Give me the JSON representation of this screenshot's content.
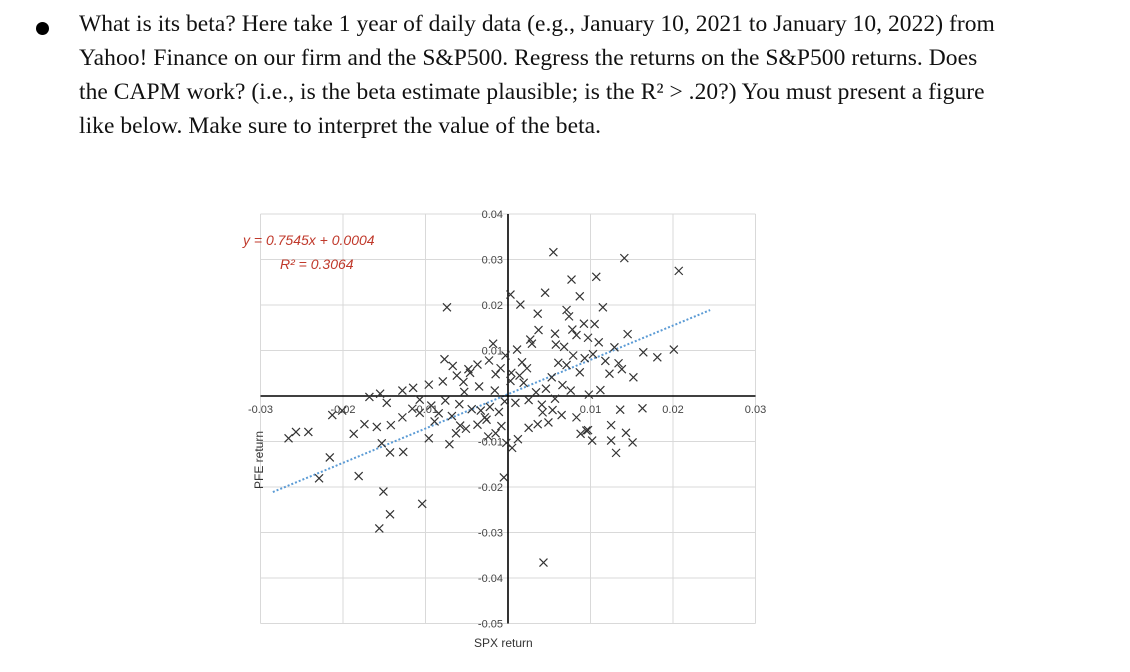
{
  "question": {
    "lines": [
      "What is its beta? Here take 1 year of daily data (e.g., January 10, 2021 to January 10, 2022) from",
      "Yahoo! Finance on our firm and the S&P500. Regress the returns on the S&P500 returns. Does",
      "the CAPM work? (i.e., is the beta estimate plausible; is the R² > .20?) You must present a figure",
      "like below. Make sure to interpret the value of the beta."
    ]
  },
  "chart_data": {
    "type": "scatter",
    "xlabel": "SPX return",
    "ylabel": "PFE return",
    "xlim": [
      -0.03,
      0.03
    ],
    "ylim": [
      -0.05,
      0.04
    ],
    "x_ticks": [
      "-0.03",
      "-0.02",
      "-0.01",
      "0.01",
      "0.02",
      "0.03"
    ],
    "y_ticks": [
      "0.04",
      "0.03",
      "0.02",
      "0.01",
      "-0.01",
      "-0.02",
      "-0.03",
      "-0.04",
      "-0.05"
    ],
    "trendline": {
      "equation": "y = 0.7545x + 0.0004",
      "r_squared": "R² = 0.3064",
      "slope": 0.7545,
      "intercept": 0.0004,
      "color": "#5b9bd5"
    },
    "marker_color": "#333333",
    "eq_color": "#c0392b",
    "points": [
      [
        0.0055,
        0.0316
      ],
      [
        0.0077,
        0.0256
      ],
      [
        0.0045,
        0.0227
      ],
      [
        0.0141,
        0.0303
      ],
      [
        0.0087,
        0.0219
      ],
      [
        0.0107,
        0.0262
      ],
      [
        0.0003,
        0.0223
      ],
      [
        0.0015,
        0.0201
      ],
      [
        0.0036,
        0.0181
      ],
      [
        0.0071,
        0.0189
      ],
      [
        0.0074,
        0.0175
      ],
      [
        0.0092,
        0.0159
      ],
      [
        0.0115,
        0.0195
      ],
      [
        0.0105,
        0.0158
      ],
      [
        0.0037,
        0.0145
      ],
      [
        0.0057,
        0.0137
      ],
      [
        0.0078,
        0.0146
      ],
      [
        0.0083,
        0.0134
      ],
      [
        0.0097,
        0.0128
      ],
      [
        0.011,
        0.0118
      ],
      [
        0.0129,
        0.0107
      ],
      [
        0.0145,
        0.0136
      ],
      [
        0.0164,
        0.0096
      ],
      [
        0.0103,
        0.0092
      ],
      [
        0.0118,
        0.0077
      ],
      [
        0.0134,
        0.0072
      ],
      [
        -0.0074,
        0.0195
      ],
      [
        -0.0018,
        0.0115
      ],
      [
        0.0011,
        0.0102
      ],
      [
        -0.0003,
        0.0089
      ],
      [
        -0.0023,
        0.0078
      ],
      [
        -0.0037,
        0.0069
      ],
      [
        -0.0046,
        0.0051
      ],
      [
        -0.0062,
        0.0045
      ],
      [
        -0.0079,
        0.0032
      ],
      [
        -0.0096,
        0.0025
      ],
      [
        -0.0115,
        0.0018
      ],
      [
        -0.0128,
        0.0012
      ],
      [
        -0.0155,
        0.0005
      ],
      [
        -0.0147,
        -0.0015
      ],
      [
        -0.0168,
        -0.0002
      ],
      [
        -0.0116,
        -0.0028
      ],
      [
        -0.0107,
        -0.0037
      ],
      [
        -0.0128,
        -0.0047
      ],
      [
        -0.0089,
        -0.0056
      ],
      [
        -0.0142,
        -0.0064
      ],
      [
        -0.0153,
        -0.0104
      ],
      [
        -0.0096,
        -0.0093
      ],
      [
        -0.0127,
        -0.0123
      ],
      [
        -0.0143,
        -0.0124
      ],
      [
        -0.0063,
        -0.0082
      ],
      [
        -0.0051,
        -0.0072
      ],
      [
        -0.0037,
        -0.0063
      ],
      [
        -0.0026,
        -0.0052
      ],
      [
        -0.0033,
        -0.0032
      ],
      [
        -0.0044,
        -0.0029
      ],
      [
        -0.0059,
        -0.0018
      ],
      [
        -0.0076,
        -0.001
      ],
      [
        -0.0022,
        -0.0024
      ],
      [
        -0.0011,
        -0.0035
      ],
      [
        -0.0008,
        -0.0066
      ],
      [
        -0.0015,
        -0.0082
      ],
      [
        -0.0002,
        -0.0103
      ],
      [
        0.0005,
        -0.0114
      ],
      [
        0.0012,
        -0.0095
      ],
      [
        0.0025,
        -0.007
      ],
      [
        0.0036,
        -0.0062
      ],
      [
        0.0042,
        -0.0036
      ],
      [
        0.0049,
        -0.0058
      ],
      [
        0.0054,
        -0.0031
      ],
      [
        0.0065,
        -0.0042
      ],
      [
        0.0083,
        -0.0047
      ],
      [
        0.0097,
        -0.0075
      ],
      [
        0.0102,
        -0.0098
      ],
      [
        0.0136,
        -0.003
      ],
      [
        0.0163,
        -0.0027
      ],
      [
        0.0053,
        0.0041
      ],
      [
        0.0066,
        0.0024
      ],
      [
        0.0087,
        0.0052
      ],
      [
        0.0071,
        0.0068
      ],
      [
        0.0093,
        0.0083
      ],
      [
        0.0123,
        0.0049
      ],
      [
        0.0138,
        0.0059
      ],
      [
        0.0152,
        0.0041
      ],
      [
        0.0034,
        0.0008
      ],
      [
        0.0046,
        0.0016
      ],
      [
        0.0014,
        0.0045
      ],
      [
        0.0023,
        0.0061
      ],
      [
        0.0017,
        0.0074
      ],
      [
        0.0003,
        0.0033
      ],
      [
        -0.0015,
        0.0048
      ],
      [
        -0.0054,
        0.0031
      ],
      [
        -0.0035,
        0.0021
      ],
      [
        -0.0053,
        0.0009
      ],
      [
        -0.0016,
        0.0012
      ],
      [
        0.0025,
        -0.0009
      ],
      [
        0.0009,
        -0.0015
      ],
      [
        -0.0004,
        -0.0012
      ],
      [
        0.0041,
        -0.0019
      ],
      [
        0.0057,
        -0.0006
      ],
      [
        0.0076,
        0.0012
      ],
      [
        0.0098,
        0.0003
      ],
      [
        0.0112,
        0.0013
      ],
      [
        -0.0028,
        -0.0047
      ],
      [
        -0.0201,
        -0.0032
      ],
      [
        -0.0213,
        -0.0042
      ],
      [
        -0.0242,
        -0.0079
      ],
      [
        -0.0257,
        -0.0079
      ],
      [
        -0.0266,
        -0.0093
      ],
      [
        -0.0181,
        -0.0176
      ],
      [
        -0.0216,
        -0.0135
      ],
      [
        -0.0187,
        -0.0083
      ],
      [
        -0.0174,
        -0.0062
      ],
      [
        -0.0159,
        -0.0068
      ],
      [
        -0.0229,
        -0.0181
      ],
      [
        -0.0151,
        -0.021
      ],
      [
        -0.0143,
        -0.026
      ],
      [
        -0.0156,
        -0.0291
      ],
      [
        -0.0104,
        -0.0237
      ],
      [
        -0.0058,
        -0.0065
      ],
      [
        -0.0068,
        -0.0044
      ],
      [
        -0.0084,
        -0.0038
      ],
      [
        -0.0071,
        -0.0106
      ],
      [
        -0.0077,
        0.0081
      ],
      [
        -0.0005,
        -0.0179
      ],
      [
        0.0043,
        -0.0366
      ],
      [
        0.0095,
        -0.0076
      ],
      [
        0.0088,
        -0.0083
      ],
      [
        0.0207,
        0.0275
      ],
      [
        0.0201,
        0.0102
      ],
      [
        0.0125,
        -0.0098
      ],
      [
        0.0131,
        -0.0125
      ],
      [
        0.0151,
        -0.0102
      ],
      [
        0.0181,
        0.0085
      ],
      [
        0.0027,
        0.0124
      ],
      [
        0.0058,
        0.0113
      ],
      [
        -0.0009,
        0.0061
      ],
      [
        0.0019,
        0.0029
      ],
      [
        -0.0048,
        0.0059
      ],
      [
        -0.0067,
        0.0066
      ],
      [
        -0.0093,
        -0.0021
      ],
      [
        -0.0107,
        -0.0008
      ],
      [
        0.0068,
        0.0108
      ],
      [
        0.0079,
        0.0089
      ],
      [
        0.0125,
        -0.0064
      ],
      [
        0.0143,
        -0.0081
      ],
      [
        0.0029,
        0.0115
      ],
      [
        0.0061,
        0.0073
      ],
      [
        -0.0024,
        -0.0089
      ],
      [
        0.0004,
        0.0051
      ]
    ]
  }
}
